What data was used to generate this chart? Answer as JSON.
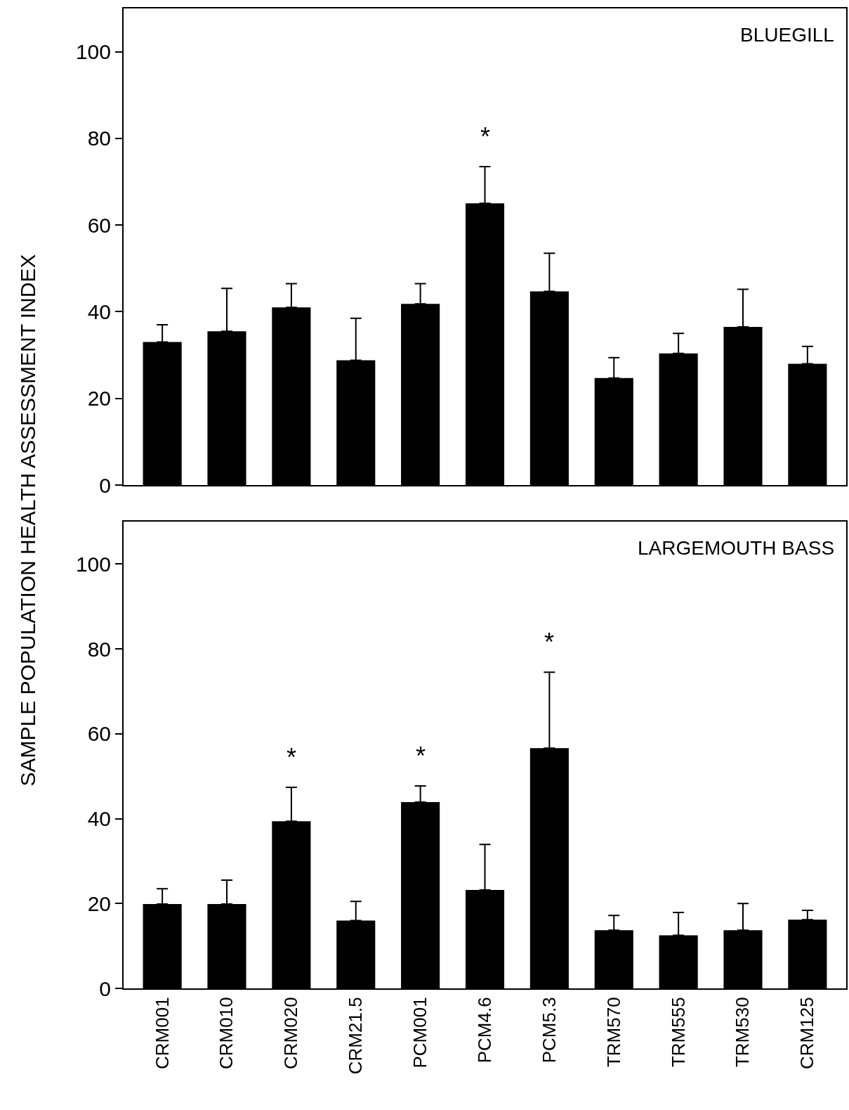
{
  "chart_data": [
    {
      "type": "bar",
      "title": "BLUEGILL",
      "ylabel": "SAMPLE POPULATION HEALTH ASSESSMENT INDEX",
      "categories": [
        "CRM001",
        "CRM010",
        "CRM020",
        "CRM21.5",
        "PCM001",
        "PCM4.6",
        "PCM5.3",
        "TRM570",
        "TRM555",
        "TRM530",
        "CRM125"
      ],
      "values": [
        33,
        35.5,
        41,
        28.8,
        41.8,
        65,
        44.7,
        24.7,
        30.4,
        36.5,
        28
      ],
      "errors": [
        [
          33,
          37
        ],
        [
          35.5,
          45.4
        ],
        [
          41,
          46.5
        ],
        [
          28.8,
          38.5
        ],
        [
          41.8,
          46.5
        ],
        [
          65,
          73.5
        ],
        [
          44.7,
          53.5
        ],
        [
          24.7,
          29.4
        ],
        [
          30.4,
          35
        ],
        [
          36.5,
          45.2
        ],
        [
          28,
          32
        ]
      ],
      "color": "#000000",
      "ylim": [
        0,
        110
      ],
      "yticks": [
        0,
        20,
        40,
        60,
        80,
        100
      ],
      "grid": false,
      "tick_labels": "y",
      "annotations": [
        {
          "text": "*",
          "x": "PCM4.6",
          "y": 73.5
        }
      ]
    },
    {
      "type": "bar",
      "title": "LARGEMOUTH BASS",
      "categories": [
        "CRM001",
        "CRM010",
        "CRM020",
        "CRM21.5",
        "PCM001",
        "PCM4.6",
        "PCM5.3",
        "TRM570",
        "TRM555",
        "TRM530",
        "CRM125"
      ],
      "values": [
        19.9,
        19.9,
        39.4,
        16,
        43.9,
        23.2,
        56.6,
        13.7,
        12.5,
        13.7,
        16.2
      ],
      "errors": [
        [
          19.9,
          23.5
        ],
        [
          19.9,
          25.5
        ],
        [
          39.4,
          47.4
        ],
        [
          16,
          20.5
        ],
        [
          43.9,
          47.7
        ],
        [
          23.2,
          33.9
        ],
        [
          56.6,
          74.5
        ],
        [
          13.7,
          17.2
        ],
        [
          12.5,
          17.9
        ],
        [
          13.7,
          20
        ],
        [
          16.2,
          18.4
        ]
      ],
      "color": "#000000",
      "ylim": [
        0,
        110
      ],
      "yticks": [
        0,
        20,
        40,
        60,
        80,
        100
      ],
      "grid": false,
      "annotations": [
        {
          "text": "*",
          "x": "CRM020",
          "y": 47.4
        },
        {
          "text": "*",
          "x": "PCM001",
          "y": 47.7
        },
        {
          "text": "*",
          "x": "PCM5.3",
          "y": 74.5
        }
      ]
    }
  ]
}
